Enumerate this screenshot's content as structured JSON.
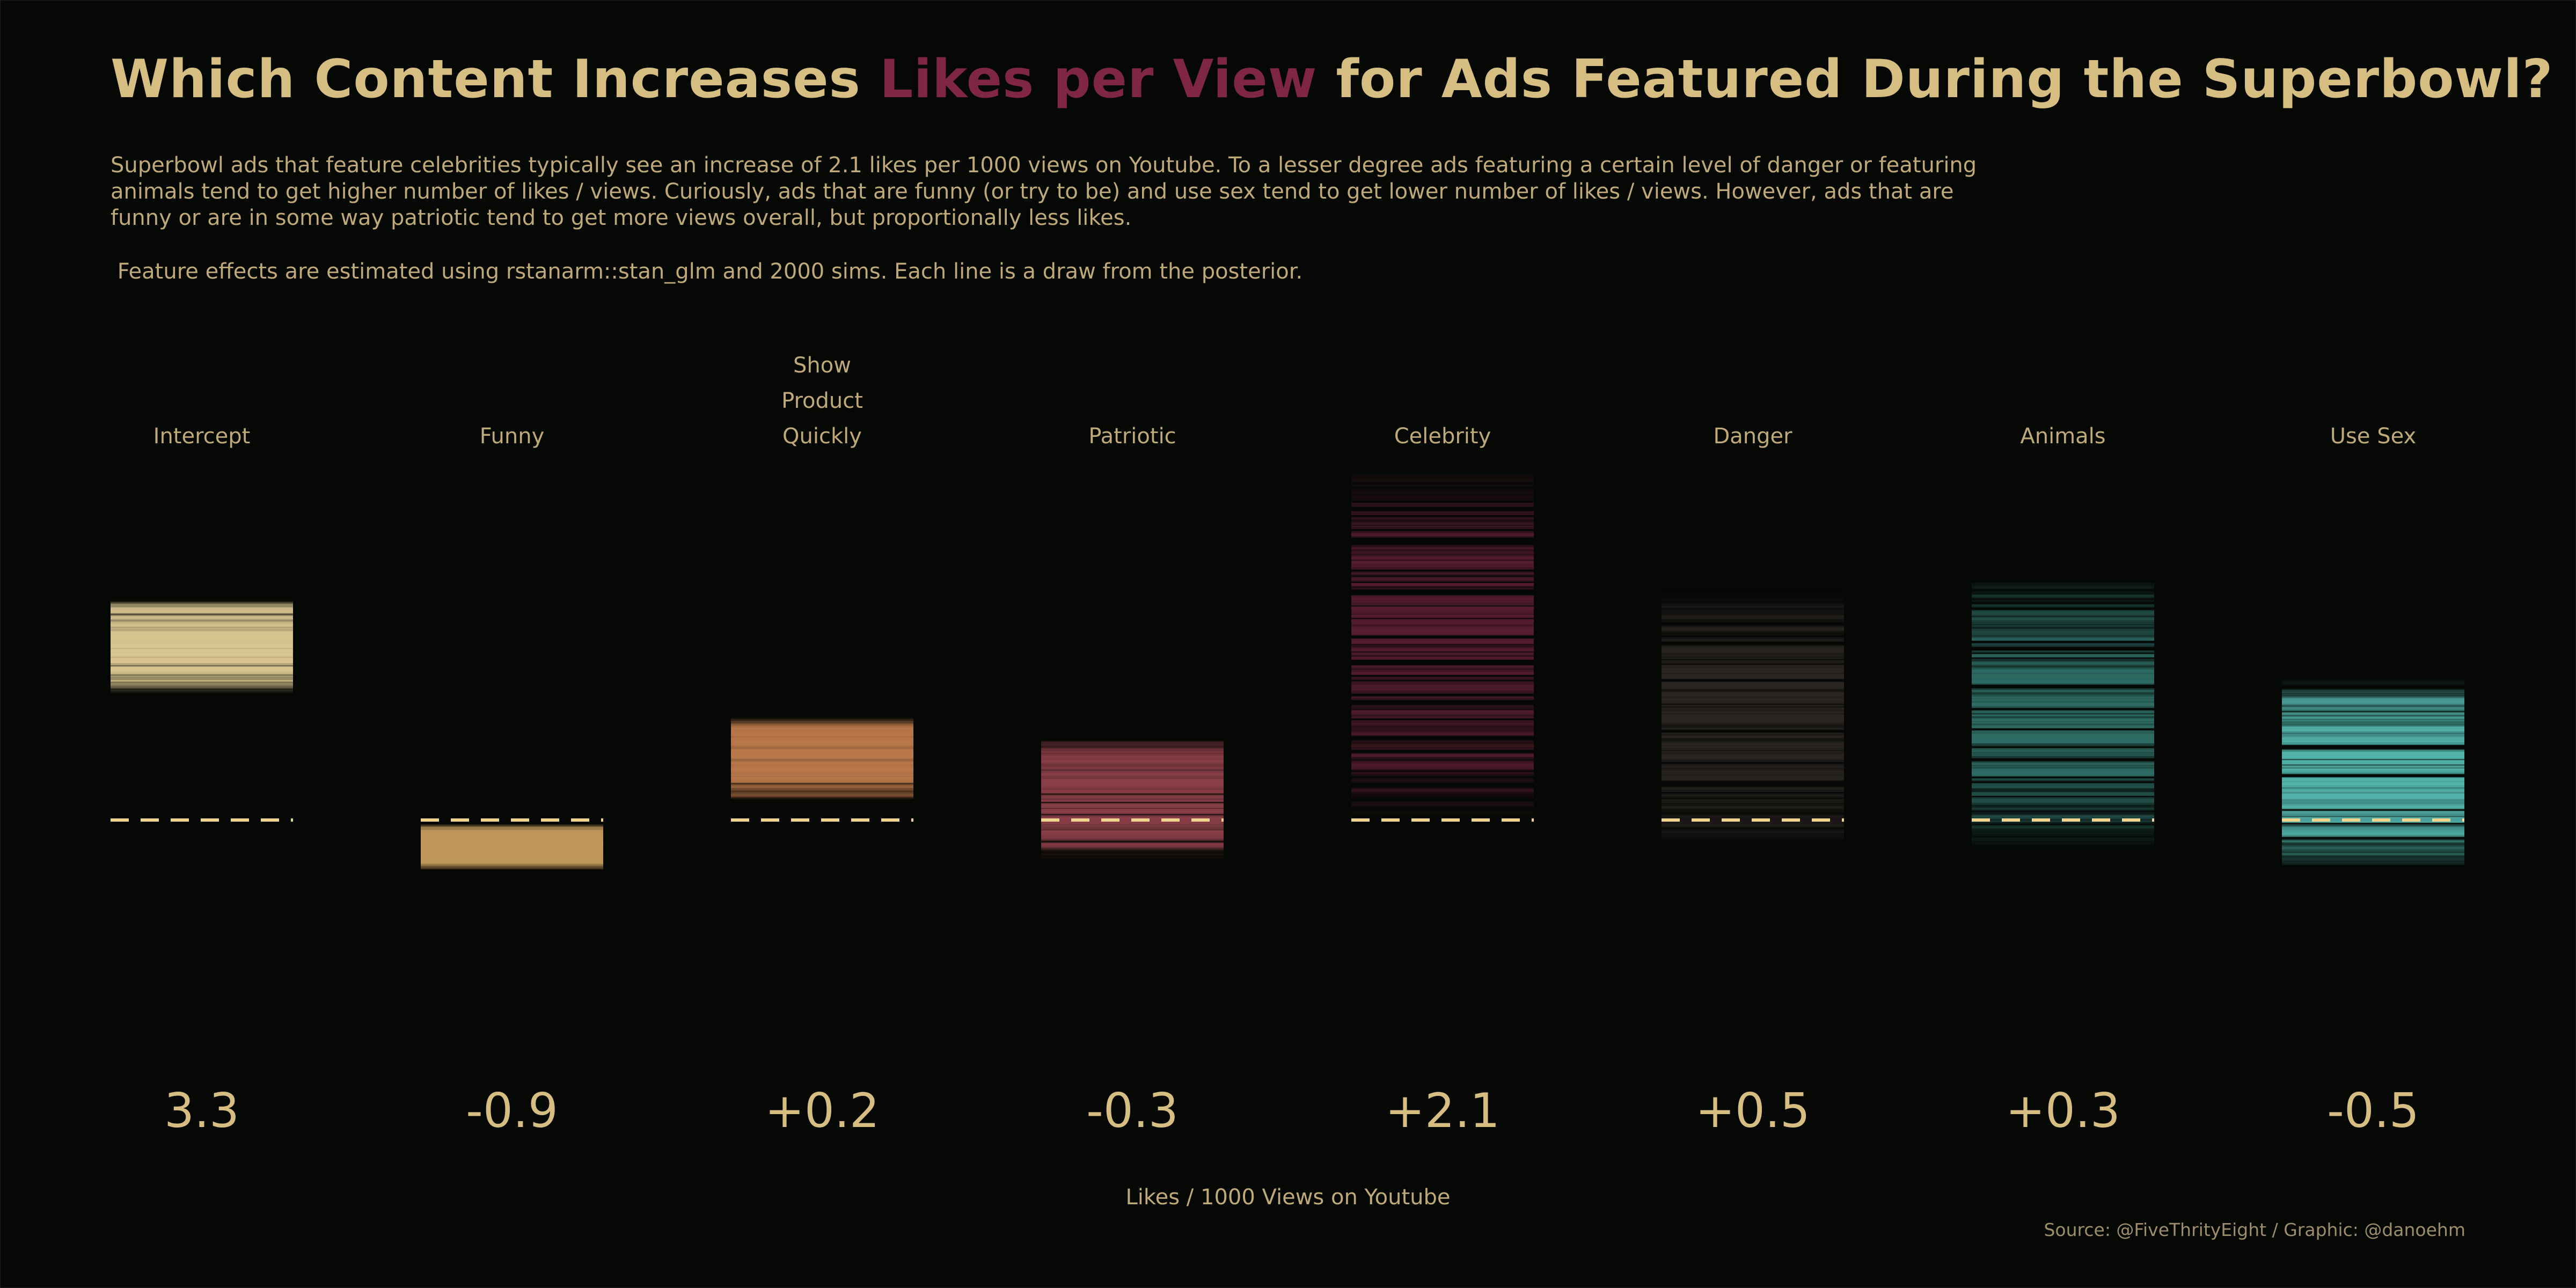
{
  "header": {
    "title_pre": "Which Content Increases ",
    "title_highlight": "Likes per View",
    "title_post": " for Ads Featured During the Superbowl?",
    "subtitle": "Superbowl ads that feature celebrities typically see an increase of 2.1 likes per 1000 views on Youtube. To a lesser degree ads featuring a certain level of danger or featuring animals tend to get higher number of likes / views. Curiously, ads that are funny (or try to be) and use sex tend to get lower number of likes / views. However, ads that are funny or are in some way patriotic tend to get more views overall, but proportionally less likes.",
    "note": " Feature effects are estimated using rstanarm::stan_glm and 2000 sims. Each line is a draw from the posterior."
  },
  "colors": {
    "background": "#050805",
    "title": "#d6bd82",
    "highlight": "#7f2647",
    "text": "#bfa979",
    "reference_line": "#f0d38e"
  },
  "chart_data": {
    "type": "bar",
    "categories": [
      "Intercept",
      "Funny",
      "Show Product Quickly",
      "Patriotic",
      "Celebrity",
      "Danger",
      "Animals",
      "Use Sex"
    ],
    "category_lines": [
      [
        "Intercept"
      ],
      [
        "Funny"
      ],
      [
        "Show",
        "Product",
        "Quickly"
      ],
      [
        "Patriotic"
      ],
      [
        "Celebrity"
      ],
      [
        "Danger"
      ],
      [
        "Animals"
      ],
      [
        "Use Sex"
      ]
    ],
    "values": [
      3.3,
      -0.9,
      0.2,
      -0.3,
      2.1,
      0.5,
      0.3,
      -0.5
    ],
    "value_labels": [
      "3.3",
      "-0.9",
      "+0.2",
      "-0.3",
      "+2.1",
      "+0.5",
      "+0.3",
      "-0.5"
    ],
    "colors": [
      "#d8c48f",
      "#c0975b",
      "#b9784a",
      "#8a3f48",
      "#5a1e30",
      "#2c2624",
      "#2e6e66",
      "#52b3aa"
    ],
    "posterior_intervals": [
      [
        2.4,
        4.1
      ],
      [
        -0.9,
        -0.1
      ],
      [
        0.4,
        1.9
      ],
      [
        -0.7,
        1.5
      ],
      [
        0.0,
        6.6
      ],
      [
        -0.5,
        4.3
      ],
      [
        -0.5,
        4.5
      ],
      [
        -0.9,
        2.6
      ]
    ],
    "reference": 0,
    "xlabel": "Likes / 1000 Views on Youtube"
  },
  "footer": {
    "caption": "Source: @FiveThrityEight / Graphic: @danoehm"
  }
}
